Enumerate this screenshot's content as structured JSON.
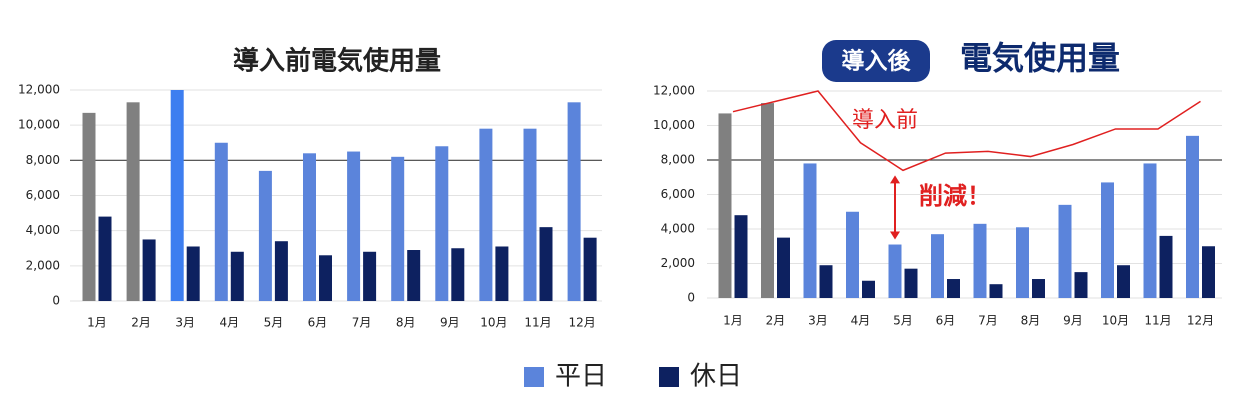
{
  "chart_data": [
    {
      "type": "bar",
      "title": "導入前電気使用量",
      "categories": [
        "1月",
        "2月",
        "3月",
        "4月",
        "5月",
        "6月",
        "7月",
        "8月",
        "9月",
        "10月",
        "11月",
        "12月"
      ],
      "series": [
        {
          "name": "平日",
          "color": "#5b84db",
          "colors": [
            "#808080",
            "#808080",
            "#3d7ef0",
            "#5b84db",
            "#5b84db",
            "#5b84db",
            "#5b84db",
            "#5b84db",
            "#5b84db",
            "#5b84db",
            "#5b84db",
            "#5b84db"
          ],
          "values": [
            10700,
            11300,
            12000,
            9000,
            7400,
            8400,
            8500,
            8200,
            8800,
            9800,
            9800,
            11300
          ]
        },
        {
          "name": "休日",
          "color": "#0d2160",
          "values": [
            4800,
            3500,
            3100,
            2800,
            3400,
            2600,
            2800,
            2900,
            3000,
            3100,
            4200,
            3600
          ]
        }
      ],
      "ylim": [
        0,
        12000
      ],
      "yticks": [
        0,
        {
          "value": 2000,
          "label": "2,000"
        },
        {
          "value": 4000,
          "label": "4,000"
        },
        {
          "value": 6000,
          "label": "6,000"
        },
        {
          "value": 8000,
          "label": "8,000"
        },
        {
          "value": 10000,
          "label": "10,000"
        },
        {
          "value": 12000,
          "label": "12,000"
        }
      ],
      "grid": true,
      "reference_line": 8000
    },
    {
      "type": "bar",
      "title_badge": "導入後",
      "title": "電気使用量",
      "categories": [
        "1月",
        "2月",
        "3月",
        "4月",
        "5月",
        "6月",
        "7月",
        "8月",
        "9月",
        "10月",
        "11月",
        "12月"
      ],
      "series": [
        {
          "name": "平日",
          "color": "#5b84db",
          "colors": [
            "#808080",
            "#808080",
            "#5b84db",
            "#5b84db",
            "#5b84db",
            "#5b84db",
            "#5b84db",
            "#5b84db",
            "#5b84db",
            "#5b84db",
            "#5b84db",
            "#5b84db"
          ],
          "values": [
            10700,
            11300,
            7800,
            5000,
            3100,
            3700,
            4300,
            4100,
            5400,
            6700,
            7800,
            9400
          ]
        },
        {
          "name": "休日",
          "color": "#0d2160",
          "values": [
            4800,
            3500,
            1900,
            1000,
            1700,
            1100,
            800,
            1100,
            1500,
            1900,
            3600,
            3000
          ]
        },
        {
          "name": "導入前",
          "type": "line",
          "color": "#e02020",
          "values": [
            10800,
            11400,
            12000,
            9000,
            7400,
            8400,
            8500,
            8200,
            8900,
            9800,
            9800,
            11400
          ]
        }
      ],
      "ylim": [
        0,
        12000
      ],
      "yticks": [
        0,
        {
          "value": 2000,
          "label": "2,000"
        },
        {
          "value": 4000,
          "label": "4,000"
        },
        {
          "value": 6000,
          "label": "6,000"
        },
        {
          "value": 8000,
          "label": "8,000"
        },
        {
          "value": 10000,
          "label": "10,000"
        },
        {
          "value": 12000,
          "label": "12,000"
        }
      ],
      "grid": true,
      "reference_line": 8000,
      "annotation": "削減！"
    }
  ]
}
